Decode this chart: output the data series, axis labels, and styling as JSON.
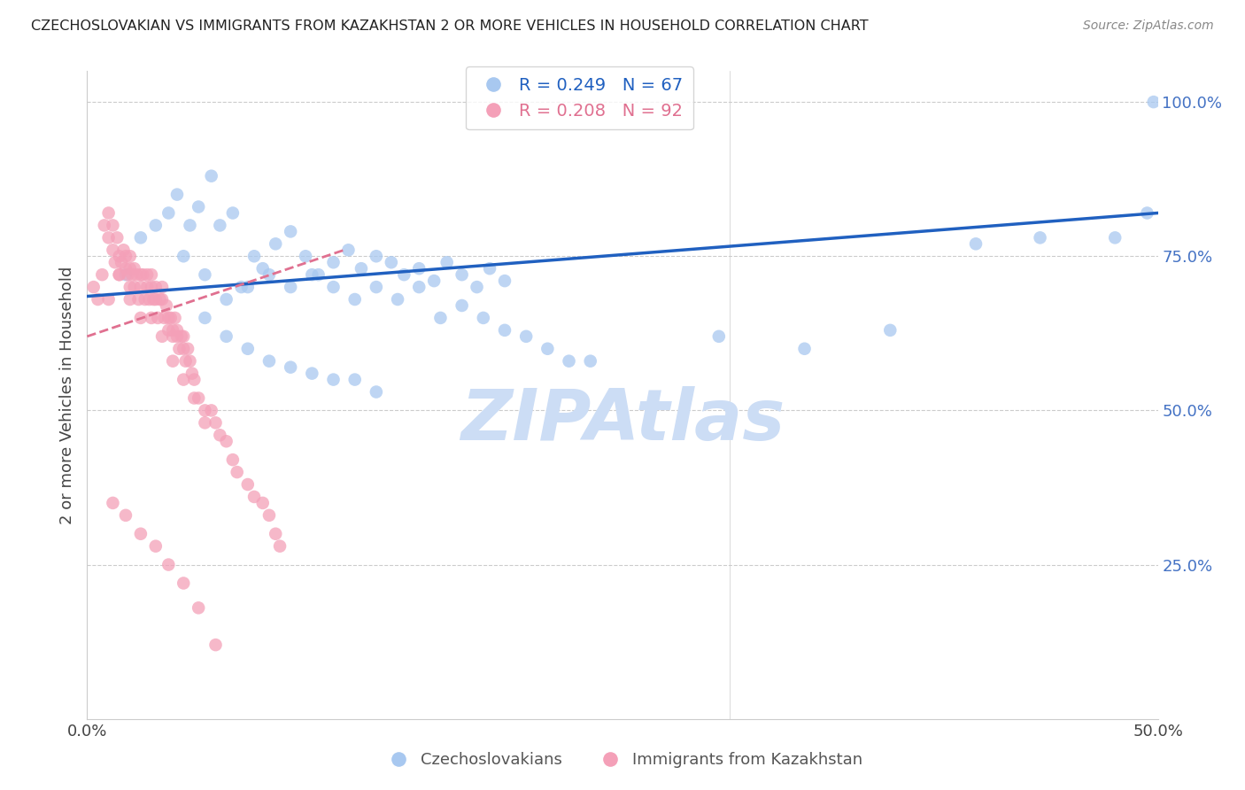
{
  "title": "CZECHOSLOVAKIAN VS IMMIGRANTS FROM KAZAKHSTAN 2 OR MORE VEHICLES IN HOUSEHOLD CORRELATION CHART",
  "source": "Source: ZipAtlas.com",
  "ylabel": "2 or more Vehicles in Household",
  "xlim": [
    0.0,
    0.5
  ],
  "ylim": [
    0.0,
    1.05
  ],
  "blue_R": 0.249,
  "blue_N": 67,
  "pink_R": 0.208,
  "pink_N": 92,
  "blue_color": "#a8c8f0",
  "pink_color": "#f4a0b8",
  "blue_line_color": "#2060c0",
  "pink_line_color": "#e07090",
  "legend_label_blue": "Czechoslovakians",
  "legend_label_pink": "Immigrants from Kazakhstan",
  "watermark": "ZIPAtlas",
  "watermark_color": "#ccddf5",
  "blue_scatter_x": [
    0.018,
    0.025,
    0.032,
    0.038,
    0.042,
    0.048,
    0.052,
    0.058,
    0.062,
    0.068,
    0.072,
    0.078,
    0.082,
    0.088,
    0.095,
    0.102,
    0.108,
    0.115,
    0.122,
    0.128,
    0.135,
    0.142,
    0.148,
    0.155,
    0.162,
    0.168,
    0.175,
    0.182,
    0.188,
    0.195,
    0.045,
    0.055,
    0.065,
    0.075,
    0.085,
    0.095,
    0.105,
    0.115,
    0.125,
    0.135,
    0.145,
    0.155,
    0.165,
    0.175,
    0.185,
    0.195,
    0.205,
    0.215,
    0.225,
    0.235,
    0.055,
    0.065,
    0.075,
    0.085,
    0.095,
    0.105,
    0.115,
    0.125,
    0.135,
    0.295,
    0.335,
    0.375,
    0.415,
    0.445,
    0.48,
    0.495,
    0.498
  ],
  "blue_scatter_y": [
    0.72,
    0.78,
    0.8,
    0.82,
    0.85,
    0.8,
    0.83,
    0.88,
    0.8,
    0.82,
    0.7,
    0.75,
    0.73,
    0.77,
    0.79,
    0.75,
    0.72,
    0.74,
    0.76,
    0.73,
    0.75,
    0.74,
    0.72,
    0.73,
    0.71,
    0.74,
    0.72,
    0.7,
    0.73,
    0.71,
    0.75,
    0.72,
    0.68,
    0.7,
    0.72,
    0.7,
    0.72,
    0.7,
    0.68,
    0.7,
    0.68,
    0.7,
    0.65,
    0.67,
    0.65,
    0.63,
    0.62,
    0.6,
    0.58,
    0.58,
    0.65,
    0.62,
    0.6,
    0.58,
    0.57,
    0.56,
    0.55,
    0.55,
    0.53,
    0.62,
    0.6,
    0.63,
    0.77,
    0.78,
    0.78,
    0.82,
    1.0
  ],
  "pink_scatter_x": [
    0.003,
    0.005,
    0.007,
    0.008,
    0.01,
    0.01,
    0.012,
    0.012,
    0.013,
    0.014,
    0.015,
    0.015,
    0.016,
    0.017,
    0.018,
    0.018,
    0.019,
    0.02,
    0.02,
    0.02,
    0.021,
    0.022,
    0.022,
    0.023,
    0.024,
    0.025,
    0.025,
    0.026,
    0.027,
    0.028,
    0.028,
    0.029,
    0.03,
    0.03,
    0.031,
    0.032,
    0.032,
    0.033,
    0.034,
    0.035,
    0.035,
    0.036,
    0.037,
    0.038,
    0.038,
    0.039,
    0.04,
    0.04,
    0.041,
    0.042,
    0.042,
    0.043,
    0.044,
    0.045,
    0.045,
    0.046,
    0.047,
    0.048,
    0.049,
    0.05,
    0.052,
    0.055,
    0.058,
    0.06,
    0.062,
    0.065,
    0.068,
    0.07,
    0.075,
    0.078,
    0.082,
    0.085,
    0.088,
    0.09,
    0.01,
    0.015,
    0.02,
    0.025,
    0.03,
    0.035,
    0.04,
    0.045,
    0.05,
    0.055,
    0.012,
    0.018,
    0.025,
    0.032,
    0.038,
    0.045,
    0.052,
    0.06
  ],
  "pink_scatter_y": [
    0.7,
    0.68,
    0.72,
    0.8,
    0.78,
    0.82,
    0.8,
    0.76,
    0.74,
    0.78,
    0.75,
    0.72,
    0.74,
    0.76,
    0.73,
    0.75,
    0.72,
    0.73,
    0.7,
    0.75,
    0.72,
    0.73,
    0.7,
    0.72,
    0.68,
    0.72,
    0.7,
    0.72,
    0.68,
    0.72,
    0.7,
    0.68,
    0.72,
    0.7,
    0.68,
    0.7,
    0.68,
    0.65,
    0.68,
    0.7,
    0.68,
    0.65,
    0.67,
    0.65,
    0.63,
    0.65,
    0.63,
    0.62,
    0.65,
    0.63,
    0.62,
    0.6,
    0.62,
    0.6,
    0.62,
    0.58,
    0.6,
    0.58,
    0.56,
    0.55,
    0.52,
    0.5,
    0.5,
    0.48,
    0.46,
    0.45,
    0.42,
    0.4,
    0.38,
    0.36,
    0.35,
    0.33,
    0.3,
    0.28,
    0.68,
    0.72,
    0.68,
    0.65,
    0.65,
    0.62,
    0.58,
    0.55,
    0.52,
    0.48,
    0.35,
    0.33,
    0.3,
    0.28,
    0.25,
    0.22,
    0.18,
    0.12
  ],
  "blue_line_x0": 0.0,
  "blue_line_y0": 0.685,
  "blue_line_x1": 0.5,
  "blue_line_y1": 0.82,
  "pink_line_x0": 0.0,
  "pink_line_y0": 0.62,
  "pink_line_x1": 0.12,
  "pink_line_y1": 0.76
}
